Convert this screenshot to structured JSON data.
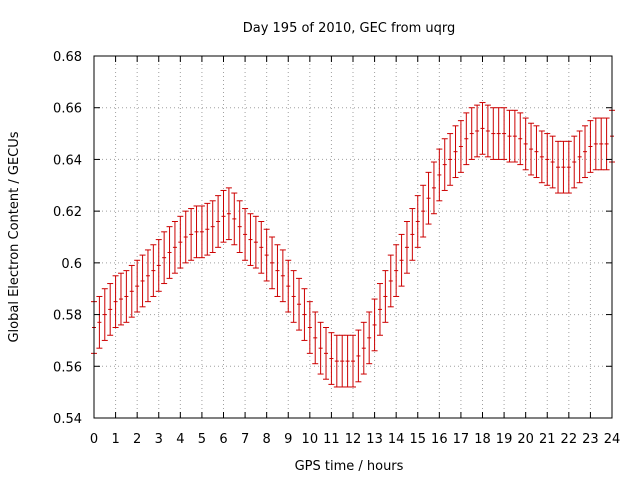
{
  "chart_data": {
    "type": "scatter",
    "title": "Day 195 of 2010, GEC from uqrg",
    "xlabel": "GPS time / hours",
    "ylabel": "Global Electron Content / GECUs",
    "xlim": [
      0,
      24
    ],
    "ylim": [
      0.54,
      0.68
    ],
    "x_ticks": [
      0,
      1,
      2,
      3,
      4,
      5,
      6,
      7,
      8,
      9,
      10,
      11,
      12,
      13,
      14,
      15,
      16,
      17,
      18,
      19,
      20,
      21,
      22,
      23,
      24
    ],
    "y_ticks": [
      0.54,
      0.56,
      0.58,
      0.6,
      0.62,
      0.64,
      0.66,
      0.68
    ],
    "y_tick_labels": [
      "0.54",
      "0.56",
      "0.58",
      "0.6",
      "0.62",
      "0.64",
      "0.66",
      "0.68"
    ],
    "grid": true,
    "series_color": "#cc0000",
    "error_bar": 0.01,
    "x": [
      0,
      0.25,
      0.5,
      0.75,
      1,
      1.25,
      1.5,
      1.75,
      2,
      2.25,
      2.5,
      2.75,
      3,
      3.25,
      3.5,
      3.75,
      4,
      4.25,
      4.5,
      4.75,
      5,
      5.25,
      5.5,
      5.75,
      6,
      6.25,
      6.5,
      6.75,
      7,
      7.25,
      7.5,
      7.75,
      8,
      8.25,
      8.5,
      8.75,
      9,
      9.25,
      9.5,
      9.75,
      10,
      10.25,
      10.5,
      10.75,
      11,
      11.25,
      11.5,
      11.75,
      12,
      12.25,
      12.5,
      12.75,
      13,
      13.25,
      13.5,
      13.75,
      14,
      14.25,
      14.5,
      14.75,
      15,
      15.25,
      15.5,
      15.75,
      16,
      16.25,
      16.5,
      16.75,
      17,
      17.25,
      17.5,
      17.75,
      18,
      18.25,
      18.5,
      18.75,
      19,
      19.25,
      19.5,
      19.75,
      20,
      20.25,
      20.5,
      20.75,
      21,
      21.25,
      21.5,
      21.75,
      22,
      22.25,
      22.5,
      22.75,
      23,
      23.25,
      23.5,
      23.75,
      24
    ],
    "y": [
      0.575,
      0.577,
      0.58,
      0.582,
      0.585,
      0.586,
      0.587,
      0.589,
      0.591,
      0.593,
      0.595,
      0.597,
      0.599,
      0.602,
      0.604,
      0.606,
      0.608,
      0.61,
      0.611,
      0.612,
      0.612,
      0.613,
      0.614,
      0.616,
      0.618,
      0.619,
      0.617,
      0.614,
      0.611,
      0.609,
      0.608,
      0.606,
      0.603,
      0.6,
      0.597,
      0.595,
      0.591,
      0.587,
      0.584,
      0.58,
      0.575,
      0.571,
      0.567,
      0.565,
      0.563,
      0.562,
      0.562,
      0.562,
      0.562,
      0.564,
      0.567,
      0.571,
      0.576,
      0.582,
      0.587,
      0.593,
      0.597,
      0.601,
      0.606,
      0.611,
      0.616,
      0.62,
      0.625,
      0.629,
      0.634,
      0.638,
      0.64,
      0.643,
      0.645,
      0.648,
      0.65,
      0.651,
      0.652,
      0.651,
      0.65,
      0.65,
      0.65,
      0.649,
      0.649,
      0.648,
      0.646,
      0.644,
      0.643,
      0.641,
      0.64,
      0.639,
      0.637,
      0.637,
      0.637,
      0.639,
      0.641,
      0.643,
      0.645,
      0.646,
      0.646,
      0.646,
      0.649
    ]
  }
}
